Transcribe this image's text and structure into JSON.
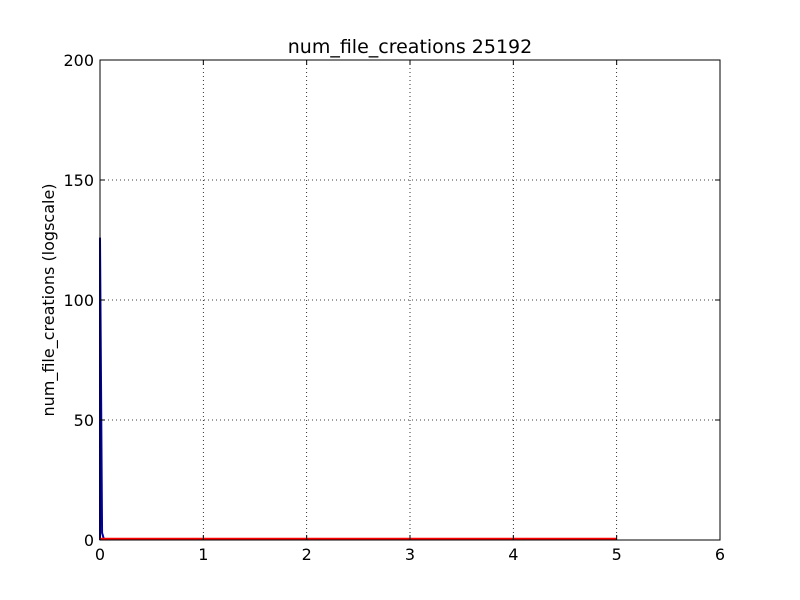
{
  "chart_data": {
    "type": "line",
    "title": "num_file_creations 25192",
    "xlabel": "",
    "ylabel": "num_file_creations (logscale)",
    "xlim": [
      0,
      6
    ],
    "ylim": [
      0,
      200
    ],
    "x_ticks": [
      0,
      1,
      2,
      3,
      4,
      5,
      6
    ],
    "y_ticks": [
      0,
      50,
      100,
      150,
      200
    ],
    "x_tick_labels": [
      "0",
      "1",
      "2",
      "3",
      "4",
      "5",
      "6"
    ],
    "y_tick_labels": [
      "0",
      "50",
      "100",
      "150",
      "200"
    ],
    "grid": true,
    "legend": "none",
    "series": [
      {
        "color": "#0000aa",
        "x": [
          0,
          0.0,
          0.02,
          0.04
        ],
        "y": [
          0,
          126,
          3,
          0
        ]
      },
      {
        "color": "#ff0000",
        "x": [
          0,
          5
        ],
        "y": [
          0.5,
          0.5
        ]
      }
    ]
  }
}
